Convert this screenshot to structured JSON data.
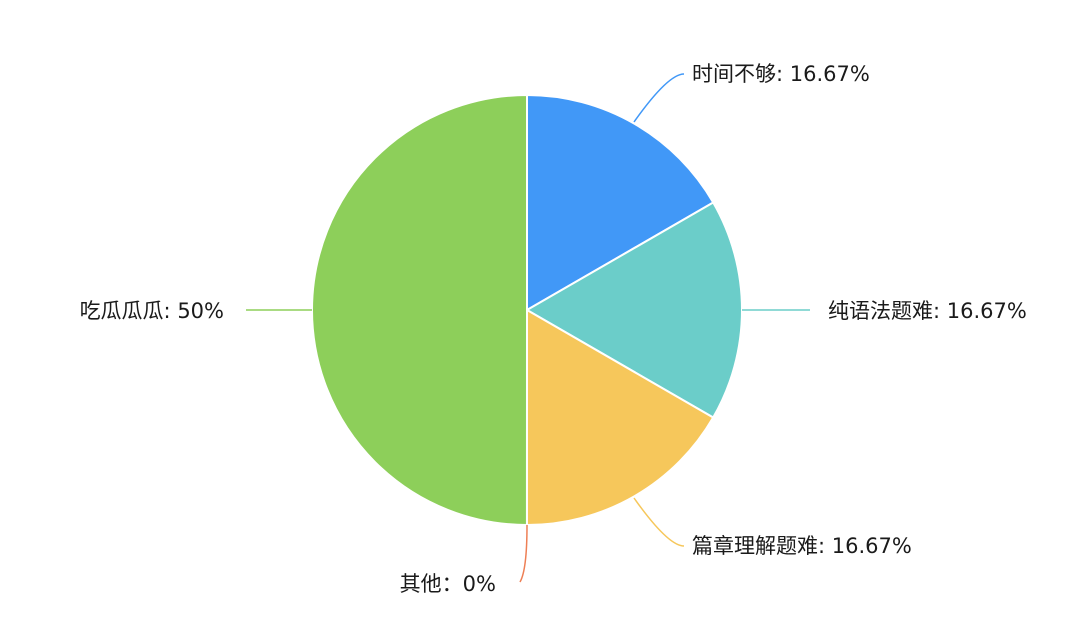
{
  "chart_data": {
    "type": "pie",
    "title": "",
    "start_direction": "top",
    "rotation": "clockwise",
    "slices": [
      {
        "name": "时间不够",
        "value": 16.67,
        "label": "时间不够: 16.67%",
        "color": "#4198F7"
      },
      {
        "name": "纯语法题难",
        "value": 16.67,
        "label": "纯语法题难: 16.67%",
        "color": "#6BCDC9"
      },
      {
        "name": "篇章理解题难",
        "value": 16.67,
        "label": "篇章理解题难: 16.67%",
        "color": "#F6C75B"
      },
      {
        "name": "其他",
        "value": 0,
        "label": "其他：0%",
        "color": "#EE7F55"
      },
      {
        "name": "吃瓜瓜瓜",
        "value": 50,
        "label": "吃瓜瓜瓜: 50%",
        "color": "#8DCF5A"
      }
    ]
  }
}
